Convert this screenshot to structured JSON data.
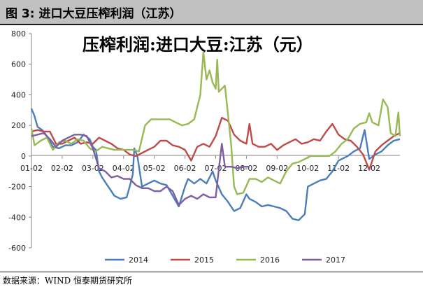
{
  "header": {
    "title": "图 3: 进口大豆压榨利润（江苏）"
  },
  "footer": {
    "source": "数据来源：WIND 恒泰期货研究所"
  },
  "chart_data": {
    "type": "line",
    "title": "压榨利润:进口大豆:江苏（元）",
    "xlabel": "",
    "ylabel": "",
    "ylim": [
      -600,
      800
    ],
    "yticks": [
      -600,
      -400,
      -200,
      0,
      200,
      400,
      600,
      800
    ],
    "x_domain": [
      1,
      13
    ],
    "x_tick_labels": [
      "01-02",
      "02-02",
      "03-02",
      "04-02",
      "05-02",
      "06-02",
      "07-02",
      "08-02",
      "09-02",
      "10-02",
      "11-02",
      "12-02"
    ],
    "x_tick_values": [
      1,
      2,
      3,
      4,
      5,
      6,
      7,
      8,
      9,
      10,
      11,
      12
    ],
    "legend_position": "bottom",
    "grid": false,
    "colors": {
      "2014": "#4a7ebb",
      "2015": "#be4b48",
      "2016": "#98b954",
      "2017": "#7d5fa0"
    },
    "series": [
      {
        "name": "2014",
        "points": [
          [
            1.0,
            310
          ],
          [
            1.1,
            260
          ],
          [
            1.2,
            190
          ],
          [
            1.35,
            170
          ],
          [
            1.5,
            130
          ],
          [
            1.7,
            60
          ],
          [
            1.9,
            50
          ],
          [
            2.1,
            70
          ],
          [
            2.3,
            70
          ],
          [
            2.5,
            90
          ],
          [
            2.7,
            140
          ],
          [
            2.9,
            110
          ],
          [
            3.0,
            60
          ],
          [
            3.1,
            40
          ],
          [
            3.2,
            -100
          ],
          [
            3.3,
            -140
          ],
          [
            3.5,
            -200
          ],
          [
            3.7,
            -260
          ],
          [
            3.9,
            -280
          ],
          [
            4.1,
            -270
          ],
          [
            4.2,
            -200
          ],
          [
            4.3,
            -120
          ],
          [
            4.35,
            50
          ],
          [
            4.45,
            0
          ],
          [
            4.6,
            -200
          ],
          [
            4.8,
            -180
          ],
          [
            5.0,
            -160
          ],
          [
            5.2,
            -180
          ],
          [
            5.4,
            -190
          ],
          [
            5.6,
            -260
          ],
          [
            5.8,
            -330
          ],
          [
            6.0,
            -200
          ],
          [
            6.1,
            -150
          ],
          [
            6.3,
            -180
          ],
          [
            6.5,
            -150
          ],
          [
            6.7,
            -180
          ],
          [
            6.9,
            -100
          ],
          [
            7.0,
            -160
          ],
          [
            7.2,
            -250
          ],
          [
            7.4,
            -300
          ],
          [
            7.6,
            -360
          ],
          [
            7.8,
            -340
          ],
          [
            8.0,
            -250
          ],
          [
            8.1,
            -280
          ],
          [
            8.3,
            -300
          ],
          [
            8.5,
            -330
          ],
          [
            8.7,
            -320
          ],
          [
            8.9,
            -330
          ],
          [
            9.1,
            -340
          ],
          [
            9.3,
            -360
          ],
          [
            9.5,
            -410
          ],
          [
            9.7,
            -420
          ],
          [
            9.9,
            -380
          ],
          [
            10.0,
            -200
          ],
          [
            10.2,
            -180
          ],
          [
            10.4,
            -160
          ],
          [
            10.6,
            -150
          ],
          [
            10.8,
            -100
          ],
          [
            11.0,
            -30
          ],
          [
            11.3,
            0
          ],
          [
            11.5,
            30
          ],
          [
            11.7,
            50
          ],
          [
            11.85,
            170
          ],
          [
            12.0,
            -20
          ],
          [
            12.2,
            10
          ],
          [
            12.4,
            30
          ],
          [
            12.6,
            70
          ],
          [
            12.8,
            100
          ],
          [
            13.0,
            110
          ]
        ]
      },
      {
        "name": "2015",
        "points": [
          [
            1.0,
            160
          ],
          [
            1.2,
            170
          ],
          [
            1.4,
            160
          ],
          [
            1.6,
            160
          ],
          [
            1.8,
            80
          ],
          [
            2.0,
            80
          ],
          [
            2.2,
            100
          ],
          [
            2.4,
            120
          ],
          [
            2.6,
            80
          ],
          [
            2.8,
            90
          ],
          [
            3.0,
            80
          ],
          [
            3.2,
            120
          ],
          [
            3.4,
            100
          ],
          [
            3.6,
            80
          ],
          [
            3.8,
            50
          ],
          [
            4.0,
            40
          ],
          [
            4.2,
            10
          ],
          [
            4.4,
            0
          ],
          [
            4.6,
            20
          ],
          [
            4.8,
            40
          ],
          [
            5.0,
            60
          ],
          [
            5.2,
            100
          ],
          [
            5.4,
            100
          ],
          [
            5.6,
            70
          ],
          [
            5.8,
            60
          ],
          [
            6.0,
            40
          ],
          [
            6.2,
            -30
          ],
          [
            6.4,
            60
          ],
          [
            6.6,
            80
          ],
          [
            6.8,
            60
          ],
          [
            7.0,
            130
          ],
          [
            7.2,
            250
          ],
          [
            7.4,
            230
          ],
          [
            7.6,
            140
          ],
          [
            7.8,
            100
          ],
          [
            8.0,
            80
          ],
          [
            8.1,
            210
          ],
          [
            8.2,
            80
          ],
          [
            8.4,
            60
          ],
          [
            8.6,
            60
          ],
          [
            8.8,
            80
          ],
          [
            9.0,
            40
          ],
          [
            9.2,
            70
          ],
          [
            9.4,
            90
          ],
          [
            9.6,
            110
          ],
          [
            9.8,
            80
          ],
          [
            10.0,
            90
          ],
          [
            10.2,
            110
          ],
          [
            10.4,
            100
          ],
          [
            10.6,
            160
          ],
          [
            10.8,
            210
          ],
          [
            11.0,
            140
          ],
          [
            11.2,
            110
          ],
          [
            11.4,
            100
          ],
          [
            11.6,
            60
          ],
          [
            11.8,
            10
          ],
          [
            12.0,
            -90
          ],
          [
            12.2,
            30
          ],
          [
            12.4,
            70
          ],
          [
            12.6,
            100
          ],
          [
            12.8,
            130
          ],
          [
            13.0,
            150
          ]
        ]
      },
      {
        "name": "2016",
        "points": [
          [
            1.0,
            180
          ],
          [
            1.1,
            70
          ],
          [
            1.3,
            100
          ],
          [
            1.5,
            120
          ],
          [
            1.7,
            40
          ],
          [
            1.9,
            90
          ],
          [
            2.1,
            100
          ],
          [
            2.3,
            80
          ],
          [
            2.5,
            110
          ],
          [
            2.7,
            100
          ],
          [
            2.9,
            50
          ],
          [
            3.1,
            30
          ],
          [
            3.3,
            60
          ],
          [
            3.5,
            50
          ],
          [
            3.7,
            40
          ],
          [
            3.9,
            40
          ],
          [
            4.1,
            40
          ],
          [
            4.3,
            40
          ],
          [
            4.5,
            30
          ],
          [
            4.7,
            200
          ],
          [
            4.9,
            240
          ],
          [
            5.1,
            240
          ],
          [
            5.3,
            240
          ],
          [
            5.5,
            240
          ],
          [
            5.7,
            220
          ],
          [
            5.9,
            200
          ],
          [
            6.1,
            210
          ],
          [
            6.3,
            240
          ],
          [
            6.5,
            400
          ],
          [
            6.6,
            680
          ],
          [
            6.7,
            500
          ],
          [
            6.8,
            560
          ],
          [
            6.9,
            480
          ],
          [
            7.0,
            440
          ],
          [
            7.05,
            630
          ],
          [
            7.1,
            420
          ],
          [
            7.3,
            460
          ],
          [
            7.5,
            80
          ],
          [
            7.6,
            -200
          ],
          [
            7.7,
            -250
          ],
          [
            7.9,
            -240
          ],
          [
            8.1,
            -150
          ],
          [
            8.3,
            -150
          ],
          [
            8.5,
            -170
          ],
          [
            8.7,
            -140
          ],
          [
            8.9,
            -160
          ],
          [
            9.1,
            -180
          ],
          [
            9.3,
            -100
          ],
          [
            9.5,
            -50
          ],
          [
            9.7,
            -40
          ],
          [
            9.9,
            -20
          ],
          [
            10.1,
            0
          ],
          [
            10.3,
            0
          ],
          [
            10.5,
            0
          ],
          [
            10.7,
            0
          ],
          [
            10.9,
            30
          ],
          [
            11.1,
            80
          ],
          [
            11.3,
            110
          ],
          [
            11.5,
            180
          ],
          [
            11.7,
            210
          ],
          [
            11.9,
            220
          ],
          [
            12.0,
            280
          ],
          [
            12.1,
            220
          ],
          [
            12.3,
            200
          ],
          [
            12.45,
            370
          ],
          [
            12.6,
            320
          ],
          [
            12.7,
            150
          ],
          [
            12.85,
            130
          ],
          [
            12.95,
            285
          ],
          [
            13.0,
            130
          ]
        ]
      },
      {
        "name": "2017",
        "points": [
          [
            1.0,
            130
          ],
          [
            1.2,
            140
          ],
          [
            1.4,
            150
          ],
          [
            1.6,
            110
          ],
          [
            1.8,
            60
          ],
          [
            2.0,
            100
          ],
          [
            2.2,
            120
          ],
          [
            2.4,
            140
          ],
          [
            2.6,
            140
          ],
          [
            2.8,
            130
          ],
          [
            3.0,
            50
          ],
          [
            3.2,
            -80
          ],
          [
            3.4,
            -100
          ],
          [
            3.6,
            -140
          ],
          [
            3.8,
            -130
          ],
          [
            4.0,
            -150
          ],
          [
            4.2,
            -150
          ],
          [
            4.4,
            -190
          ],
          [
            4.6,
            -210
          ],
          [
            4.8,
            -210
          ],
          [
            5.0,
            -230
          ],
          [
            5.2,
            -230
          ],
          [
            5.4,
            -200
          ],
          [
            5.6,
            -230
          ],
          [
            5.8,
            -320
          ],
          [
            6.0,
            -280
          ],
          [
            6.2,
            -260
          ],
          [
            6.4,
            -280
          ],
          [
            6.6,
            -250
          ],
          [
            6.8,
            -270
          ],
          [
            7.0,
            -270
          ],
          [
            7.1,
            -90
          ],
          [
            7.2,
            80
          ],
          [
            7.3,
            -70
          ],
          [
            7.5,
            -70
          ],
          [
            7.7,
            -80
          ],
          [
            7.9,
            -70
          ],
          [
            8.1,
            -70
          ]
        ]
      }
    ]
  }
}
